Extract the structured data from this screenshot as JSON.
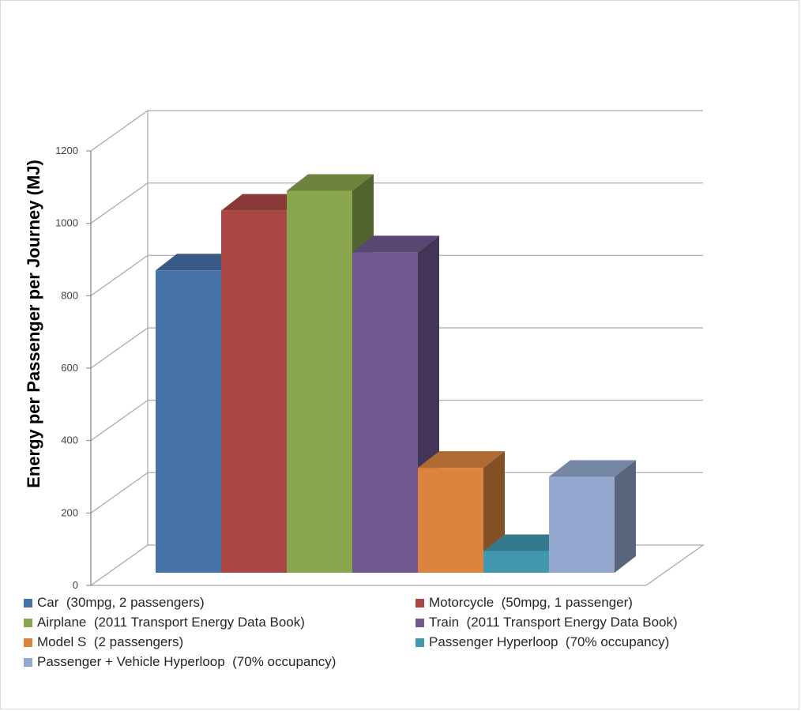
{
  "chart_data": {
    "type": "bar",
    "title": "",
    "xlabel": "",
    "ylabel": "Energy per Passenger per Journey (MJ)",
    "ylim": [
      0,
      1200
    ],
    "yticks": [
      0,
      200,
      400,
      600,
      800,
      1000,
      1200
    ],
    "grid": true,
    "legend_position": "bottom",
    "series": [
      {
        "name": "Car  (30mpg, 2 passengers)",
        "value": 835,
        "color": "#4572A7"
      },
      {
        "name": "Motorcycle  (50mpg, 1 passenger)",
        "value": 1000,
        "color": "#AA4643"
      },
      {
        "name": "Airplane  (2011 Transport Energy Data Book)",
        "value": 1055,
        "color": "#89A54E"
      },
      {
        "name": "Train  (2011 Transport Energy Data Book)",
        "value": 885,
        "color": "#71588F"
      },
      {
        "name": "Model S  (2 passengers)",
        "value": 290,
        "color": "#DB843D"
      },
      {
        "name": "Passenger Hyperloop  (70% occupancy)",
        "value": 60,
        "color": "#4198AF"
      },
      {
        "name": "Passenger + Vehicle Hyperloop  (70% occupancy)",
        "value": 265,
        "color": "#93A9CF"
      }
    ]
  }
}
